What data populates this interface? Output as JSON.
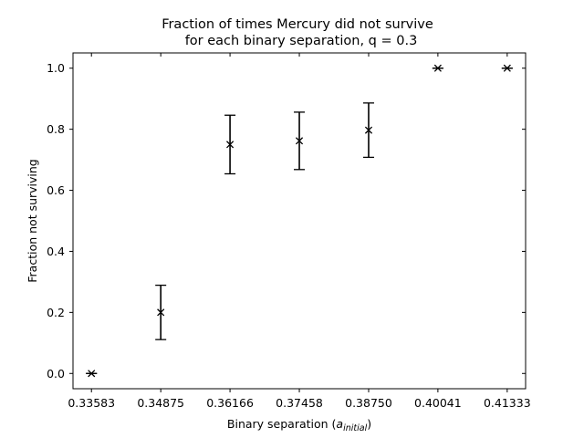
{
  "chart_data": {
    "type": "scatter",
    "title": [
      "Fraction of times Mercury did not survive",
      "for each binary separation, q = 0.3"
    ],
    "xlabel": {
      "main": "Binary separation (",
      "var": "a",
      "sub": "initial",
      "close": ")"
    },
    "ylabel": "Fraction not surviving",
    "x_tick_labels": [
      "0.33583",
      "0.34875",
      "0.36166",
      "0.37458",
      "0.38750",
      "0.40041",
      "0.41333"
    ],
    "y_tick_labels": [
      "0.0",
      "0.2",
      "0.4",
      "0.6",
      "0.8",
      "1.0"
    ],
    "x": [
      0.33583,
      0.34875,
      0.36166,
      0.37458,
      0.3875,
      0.40041,
      0.41333
    ],
    "y": [
      0.0,
      0.2,
      0.75,
      0.762,
      0.797,
      1.0,
      1.0
    ],
    "yerr": [
      0.0,
      0.089,
      0.096,
      0.094,
      0.089,
      0.0,
      0.0
    ],
    "xlim": [
      0.33239,
      0.41676
    ],
    "ylim": [
      -0.05,
      1.05
    ],
    "marker": "x",
    "grid": false,
    "color": "#000000"
  }
}
